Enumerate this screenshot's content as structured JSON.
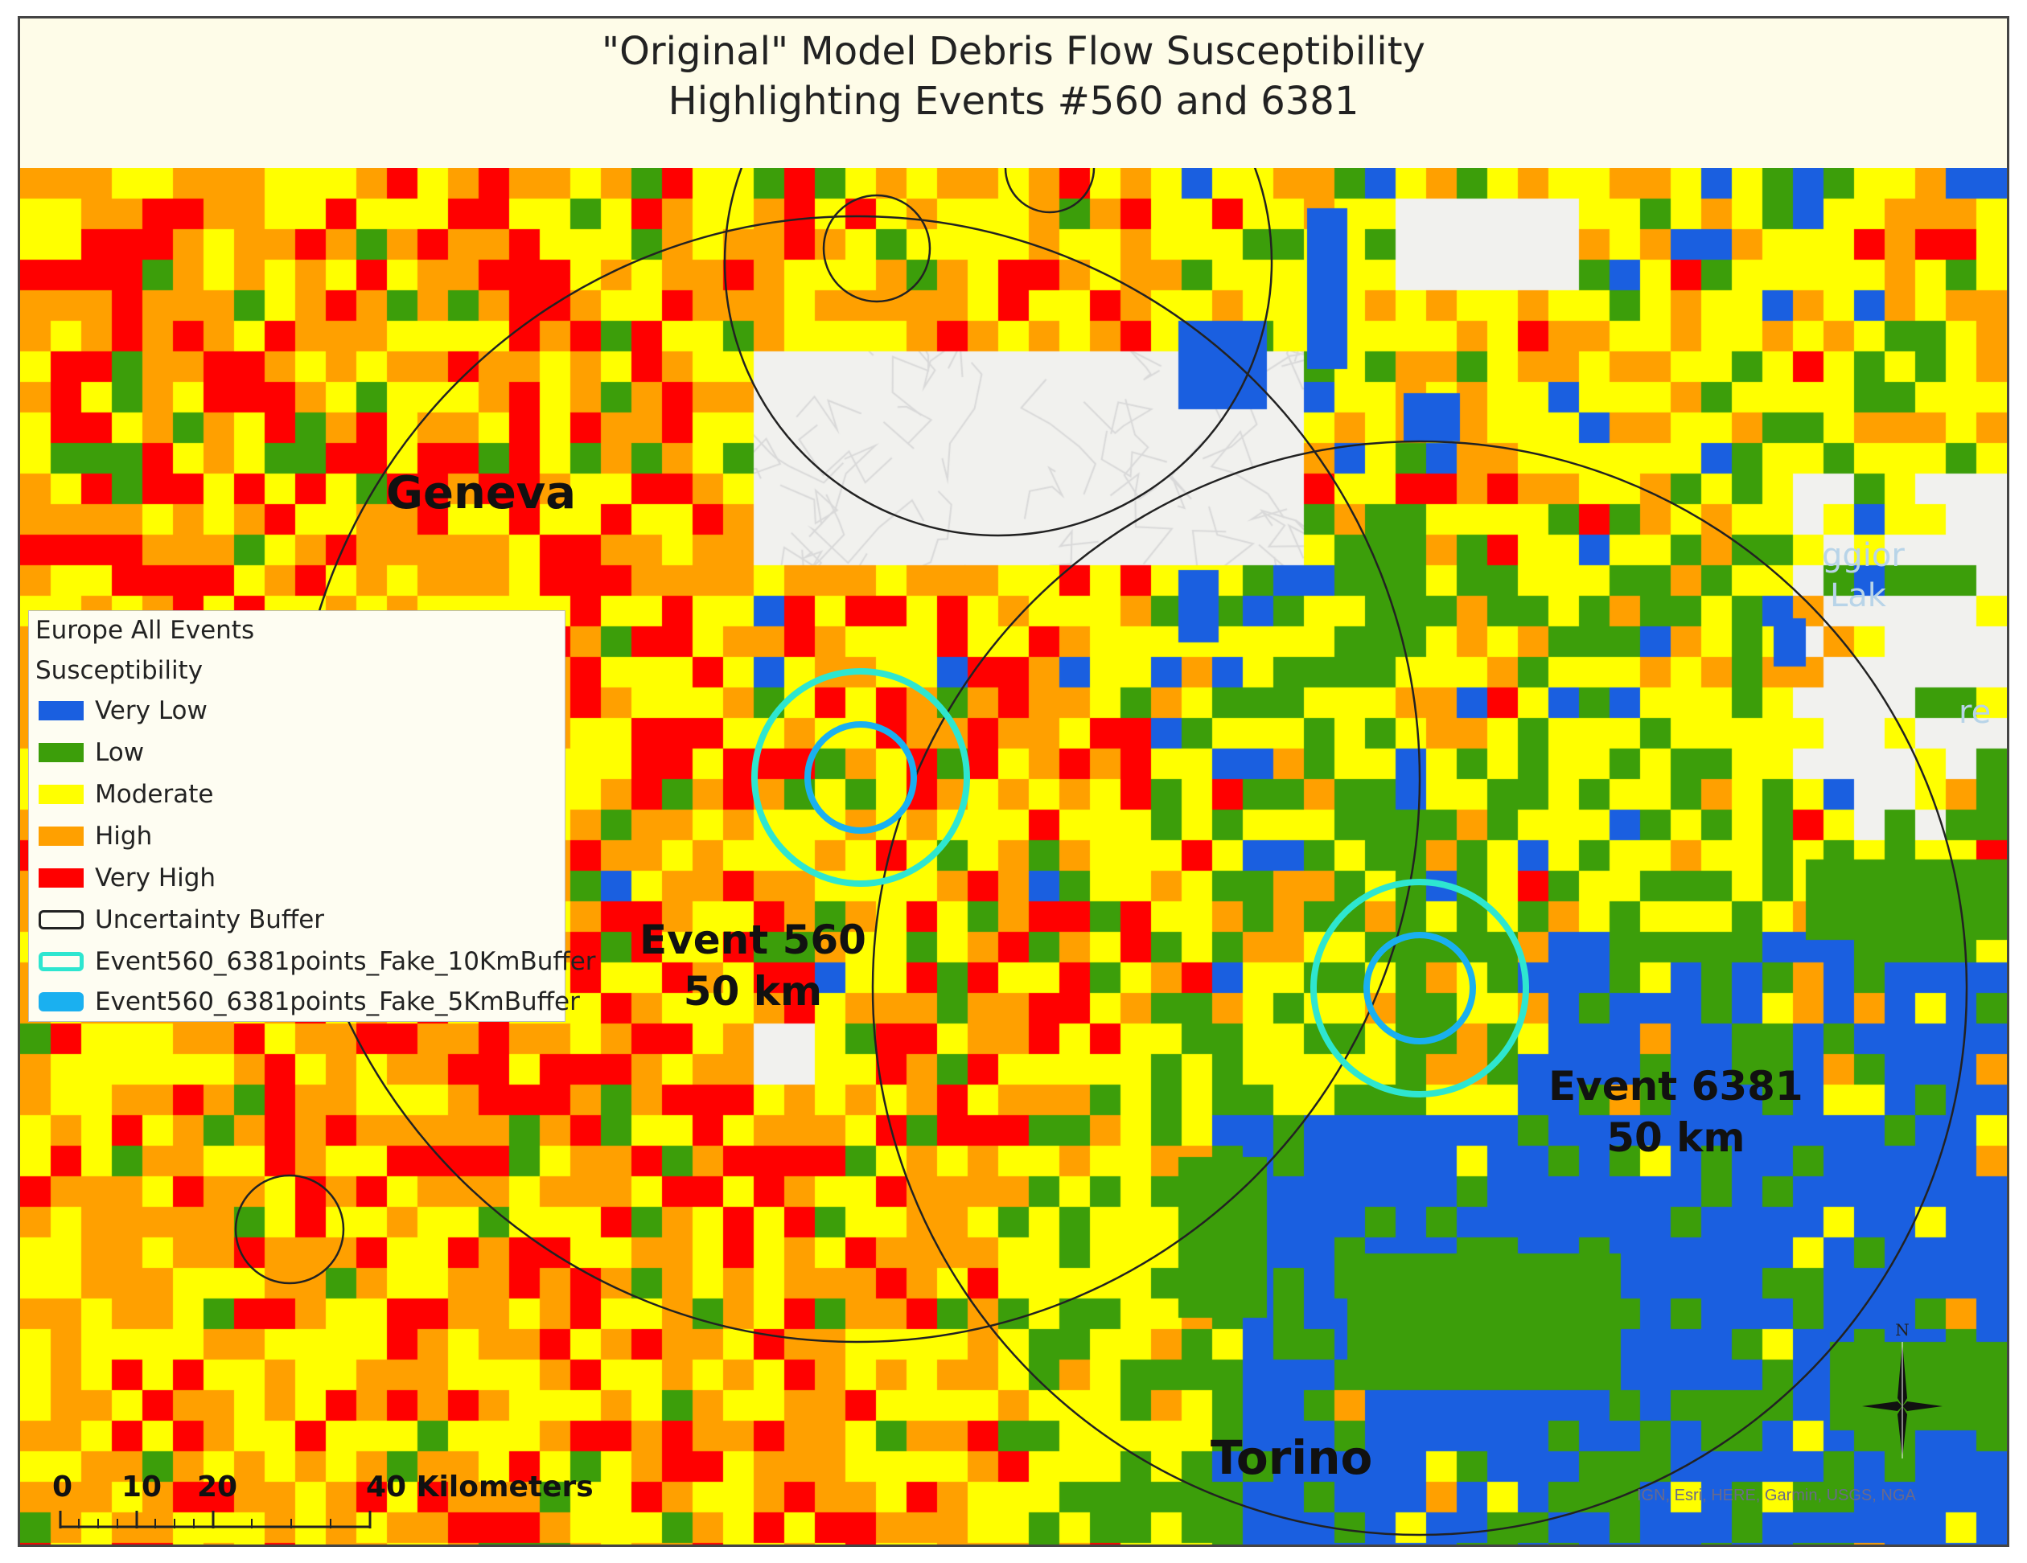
{
  "title": {
    "line1": "\"Original\" Model Debris Flow Susceptibility",
    "line2": "Highlighting Events #560 and 6381"
  },
  "places": {
    "geneva": "Geneva",
    "torino": "Torino"
  },
  "events": {
    "e560": {
      "name": "Event 560",
      "radius": "50 km"
    },
    "e6381": {
      "name": "Event 6381",
      "radius": "50 km"
    }
  },
  "legend": {
    "group": "Europe All Events",
    "field": "Susceptibility",
    "classes": [
      {
        "label": "Very Low",
        "color": "#1a5fe0"
      },
      {
        "label": "Low",
        "color": "#3c9e0a"
      },
      {
        "label": "Moderate",
        "color": "#ffff00"
      },
      {
        "label": "High",
        "color": "#ffa000"
      },
      {
        "label": "Very High",
        "color": "#ff0000"
      }
    ],
    "buffers": [
      {
        "label": "Uncertainty Buffer",
        "color": "#222222"
      },
      {
        "label": "Event560_6381points_Fake_10KmBuffer",
        "color": "#2ee6d0"
      },
      {
        "label": "Event560_6381points_Fake_5KmBuffer",
        "color": "#1ab0f0"
      }
    ]
  },
  "scalebar": {
    "ticks": [
      "0",
      "10",
      "20",
      "40 Kilometers"
    ]
  },
  "north_label": "N",
  "attribution": "IGN, Esri, HERE, Garmin, USGS, NGA",
  "basemap_labels": [
    "ggior",
    "Lak",
    "re"
  ]
}
